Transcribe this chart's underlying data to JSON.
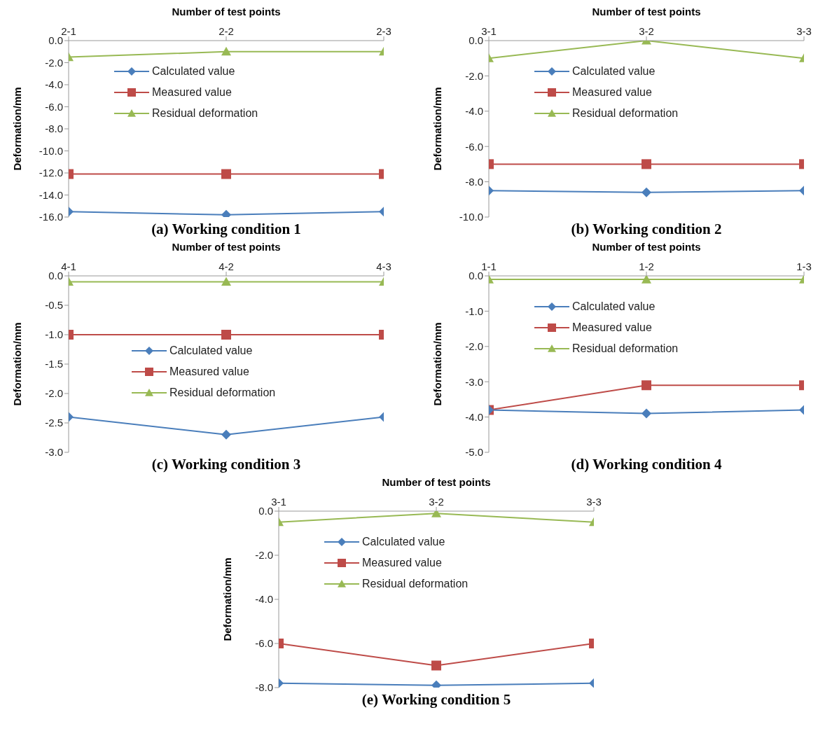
{
  "chart_data": [
    {
      "type": "line",
      "title": "(a) Working condition 1",
      "xlabel": "Number of test points",
      "ylabel": "Deformation/mm",
      "categories": [
        "2-1",
        "2-2",
        "2-3"
      ],
      "ylim": [
        -16,
        0
      ],
      "yticks": [
        {
          "value": -16,
          "label": "-16.0"
        },
        {
          "value": -14,
          "label": "-14.0"
        },
        {
          "value": -12,
          "label": "-12.0"
        },
        {
          "value": -10,
          "label": "-10.0"
        },
        {
          "value": -8,
          "label": "-8.0"
        },
        {
          "value": -6,
          "label": "-6.0"
        },
        {
          "value": -4,
          "label": "-4.0"
        },
        {
          "value": -2,
          "label": "-2.0"
        },
        {
          "value": 0,
          "label": "0.0"
        }
      ],
      "grid": false,
      "legend": "top",
      "series": [
        {
          "name": "Calculated value",
          "color": "#4a7ebb",
          "marker": "diamond",
          "values": [
            -15.5,
            -15.8,
            -15.5
          ]
        },
        {
          "name": "Measured value",
          "color": "#be4b48",
          "marker": "square",
          "values": [
            -12.1,
            -12.1,
            -12.1
          ]
        },
        {
          "name": "Residual deformation",
          "color": "#98b954",
          "marker": "triangle",
          "values": [
            -1.5,
            -1.0,
            -1.0
          ]
        }
      ]
    },
    {
      "type": "line",
      "title": "(b) Working condition 2",
      "xlabel": "Number of test points",
      "ylabel": "Deformation/mm",
      "categories": [
        "3-1",
        "3-2",
        "3-3"
      ],
      "ylim": [
        -10,
        0
      ],
      "yticks": [
        {
          "value": -10,
          "label": "-10.0"
        },
        {
          "value": -8,
          "label": "-8.0"
        },
        {
          "value": -6,
          "label": "-6.0"
        },
        {
          "value": -4,
          "label": "-4.0"
        },
        {
          "value": -2,
          "label": "-2.0"
        },
        {
          "value": 0,
          "label": "0.0"
        }
      ],
      "grid": false,
      "legend": "top",
      "series": [
        {
          "name": "Calculated value",
          "color": "#4a7ebb",
          "marker": "diamond",
          "values": [
            -8.5,
            -8.6,
            -8.5
          ]
        },
        {
          "name": "Measured value",
          "color": "#be4b48",
          "marker": "square",
          "values": [
            -7.0,
            -7.0,
            -7.0
          ]
        },
        {
          "name": "Residual deformation",
          "color": "#98b954",
          "marker": "triangle",
          "values": [
            -1.0,
            0.0,
            -1.0
          ]
        }
      ]
    },
    {
      "type": "line",
      "title": "(c) Working condition 3",
      "xlabel": "Number of test points",
      "ylabel": "Deformation/mm",
      "categories": [
        "4-1",
        "4-2",
        "4-3"
      ],
      "ylim": [
        -3,
        0
      ],
      "yticks": [
        {
          "value": -3,
          "label": "-3.0"
        },
        {
          "value": -2.5,
          "label": "-2.5"
        },
        {
          "value": -2,
          "label": "-2.0"
        },
        {
          "value": -1.5,
          "label": "-1.5"
        },
        {
          "value": -1,
          "label": "-1.0"
        },
        {
          "value": -0.5,
          "label": "-0.5"
        },
        {
          "value": 0,
          "label": "0.0"
        }
      ],
      "grid": false,
      "legend": "center",
      "series": [
        {
          "name": "Calculated value",
          "color": "#4a7ebb",
          "marker": "diamond",
          "values": [
            -2.4,
            -2.7,
            -2.4
          ]
        },
        {
          "name": "Measured value",
          "color": "#be4b48",
          "marker": "square",
          "values": [
            -1.0,
            -1.0,
            -1.0
          ]
        },
        {
          "name": "Residual deformation",
          "color": "#98b954",
          "marker": "triangle",
          "values": [
            -0.1,
            -0.1,
            -0.1
          ]
        }
      ]
    },
    {
      "type": "line",
      "title": "(d) Working condition 4",
      "xlabel": "Number of test points",
      "ylabel": "Deformation/mm",
      "categories": [
        "1-1",
        "1-2",
        "1-3"
      ],
      "ylim": [
        -5,
        0
      ],
      "yticks": [
        {
          "value": -5,
          "label": "-5.0"
        },
        {
          "value": -4,
          "label": "-4.0"
        },
        {
          "value": -3,
          "label": "-3.0"
        },
        {
          "value": -2,
          "label": "-2.0"
        },
        {
          "value": -1,
          "label": "-1.0"
        },
        {
          "value": 0,
          "label": "0.0"
        }
      ],
      "grid": false,
      "legend": "top",
      "series": [
        {
          "name": "Calculated value",
          "color": "#4a7ebb",
          "marker": "diamond",
          "values": [
            -3.8,
            -3.9,
            -3.8
          ]
        },
        {
          "name": "Measured value",
          "color": "#be4b48",
          "marker": "square",
          "values": [
            -3.8,
            -3.1,
            -3.1
          ]
        },
        {
          "name": "Residual deformation",
          "color": "#98b954",
          "marker": "triangle",
          "values": [
            -0.1,
            -0.1,
            -0.1
          ]
        }
      ]
    },
    {
      "type": "line",
      "title": "(e) Working condition 5",
      "xlabel": "Number of test points",
      "ylabel": "Deformation/mm",
      "categories": [
        "3-1",
        "3-2",
        "3-3"
      ],
      "ylim": [
        -8,
        0
      ],
      "yticks": [
        {
          "value": -8,
          "label": "-8.0"
        },
        {
          "value": -6,
          "label": "-6.0"
        },
        {
          "value": -4,
          "label": "-4.0"
        },
        {
          "value": -2,
          "label": "-2.0"
        },
        {
          "value": 0,
          "label": "0.0"
        }
      ],
      "grid": false,
      "legend": "top",
      "series": [
        {
          "name": "Calculated value",
          "color": "#4a7ebb",
          "marker": "diamond",
          "values": [
            -7.8,
            -7.9,
            -7.8
          ]
        },
        {
          "name": "Measured value",
          "color": "#be4b48",
          "marker": "square",
          "values": [
            -6.0,
            -7.0,
            -6.0
          ]
        },
        {
          "name": "Residual deformation",
          "color": "#98b954",
          "marker": "triangle",
          "values": [
            -0.5,
            -0.1,
            -0.5
          ]
        }
      ]
    }
  ]
}
